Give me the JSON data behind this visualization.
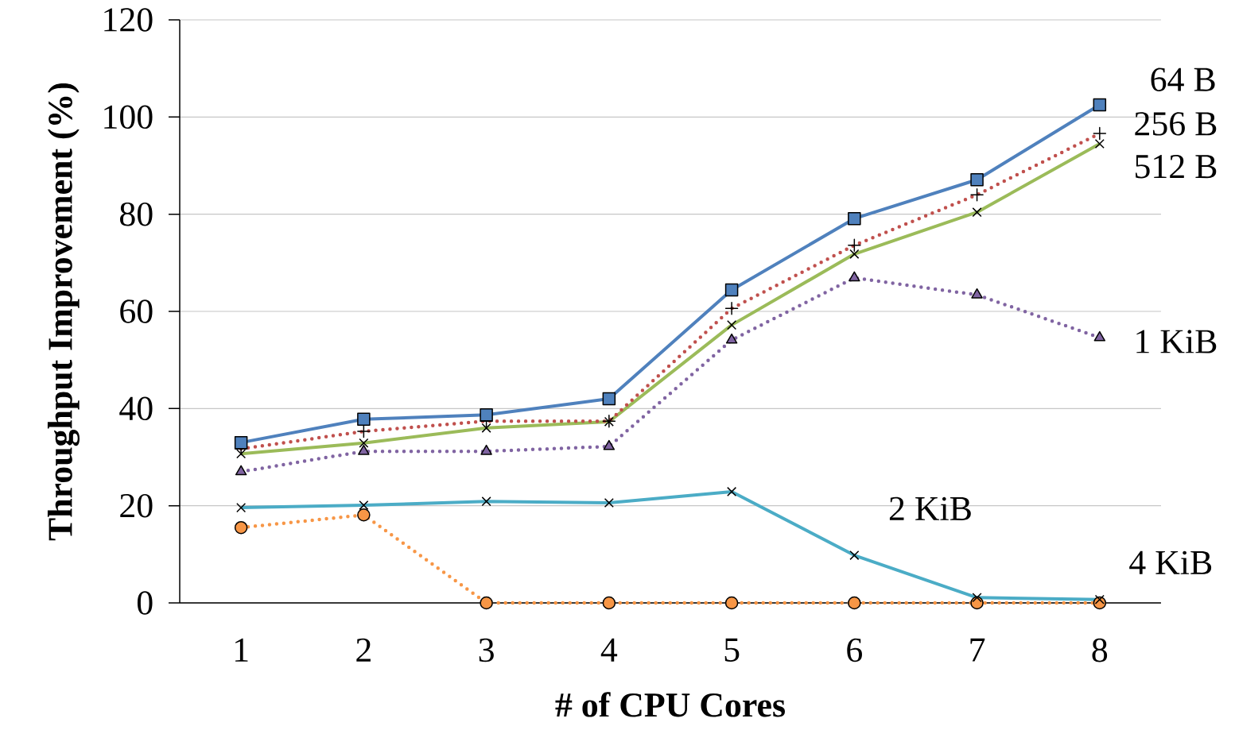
{
  "chart_data": {
    "type": "line",
    "xlabel": "# of CPU Cores",
    "ylabel": "Throughput Improvement (%)",
    "categories": [
      "1",
      "2",
      "3",
      "4",
      "5",
      "6",
      "7",
      "8"
    ],
    "ylim": [
      0,
      120
    ],
    "yticks": [
      0,
      20,
      40,
      60,
      80,
      100,
      120
    ],
    "grid": "y",
    "legend": false,
    "series": [
      {
        "name": "64 B",
        "color": "#4f81bd",
        "marker": "square",
        "line_style": "solid",
        "values": [
          33.0,
          37.8,
          38.7,
          42.0,
          64.4,
          79.1,
          87.1,
          102.5
        ]
      },
      {
        "name": "256 B",
        "color": "#c0504d",
        "marker": "plus",
        "line_style": "dotted",
        "values": [
          31.7,
          35.3,
          37.4,
          37.4,
          60.6,
          73.6,
          84.0,
          96.6
        ]
      },
      {
        "name": "512 B",
        "color": "#9bbb59",
        "marker": "cross",
        "line_style": "solid",
        "values": [
          30.7,
          32.9,
          36.0,
          37.3,
          57.2,
          71.8,
          80.4,
          94.5
        ]
      },
      {
        "name": "1 KiB",
        "color": "#8064a2",
        "marker": "triangle",
        "line_style": "dotted",
        "values": [
          27.0,
          31.2,
          31.2,
          32.2,
          54.1,
          66.9,
          63.4,
          54.6
        ]
      },
      {
        "name": "2 KiB",
        "color": "#4bacc6",
        "marker": "cross",
        "line_style": "solid",
        "values": [
          19.6,
          20.1,
          20.9,
          20.6,
          22.9,
          9.8,
          1.1,
          0.7
        ]
      },
      {
        "name": "4 KiB",
        "color": "#f79646",
        "marker": "circle",
        "line_style": "dotted",
        "values": [
          15.5,
          18.1,
          0,
          0,
          0,
          0,
          0,
          0
        ]
      }
    ]
  }
}
